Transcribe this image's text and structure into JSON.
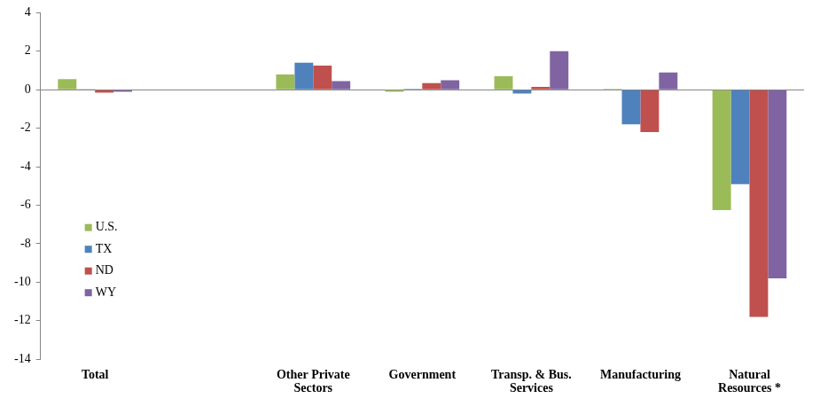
{
  "chart_data": {
    "type": "bar",
    "categories": [
      "Total",
      null,
      "Other Private Sectors",
      "Government",
      "Transp. & Bus. Services",
      "Manufacturing",
      "Natural Resources *"
    ],
    "series": [
      {
        "name": "U.S.",
        "color": "#9BBB59",
        "values": [
          0.55,
          null,
          0.8,
          -0.1,
          0.7,
          0.05,
          -6.25
        ]
      },
      {
        "name": "TX",
        "color": "#4F81BD",
        "values": [
          0.03,
          null,
          1.4,
          0.05,
          -0.2,
          -1.8,
          -4.9
        ]
      },
      {
        "name": "ND",
        "color": "#C0504D",
        "values": [
          -0.15,
          null,
          1.25,
          0.35,
          0.15,
          -2.2,
          -11.8
        ]
      },
      {
        "name": "WY",
        "color": "#8064A2",
        "values": [
          -0.1,
          null,
          0.45,
          0.5,
          2.0,
          0.9,
          -9.8
        ]
      }
    ],
    "ylim": [
      -14,
      4
    ],
    "yticks": [
      -14,
      -12,
      -10,
      -8,
      -6,
      -4,
      -2,
      0,
      2,
      4
    ],
    "grid": false,
    "legend": "left"
  }
}
